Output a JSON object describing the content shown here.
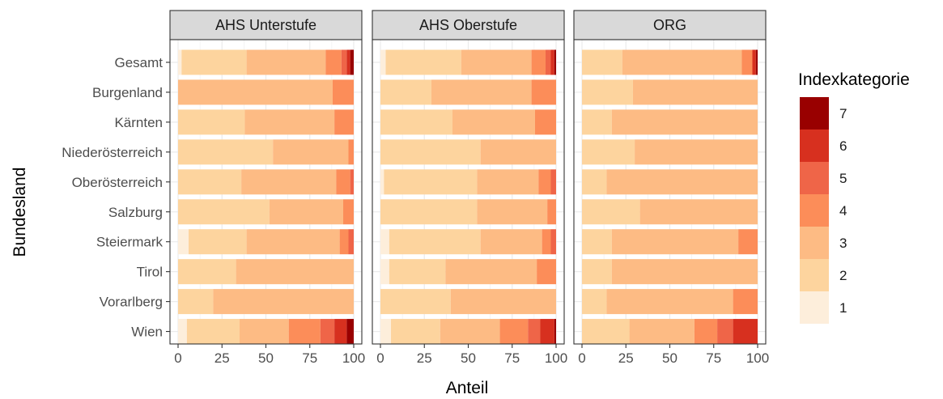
{
  "chart_data": {
    "type": "bar",
    "orientation": "horizontal",
    "stacked": true,
    "xlabel": "Anteil",
    "ylabel": "Bundesland",
    "xlim": [
      0,
      100
    ],
    "xticks": [
      "0",
      "25",
      "50",
      "75",
      "100"
    ],
    "xtick_values": [
      0,
      25,
      50,
      75,
      100
    ],
    "categories": [
      "Gesamt",
      "Burgenland",
      "Kärnten",
      "Niederösterreich",
      "Oberösterreich",
      "Salzburg",
      "Steiermark",
      "Tirol",
      "Vorarlberg",
      "Wien"
    ],
    "grid": true,
    "legend": {
      "title": "Indexkategorie",
      "position": "right",
      "entries": [
        "7",
        "6",
        "5",
        "4",
        "3",
        "2",
        "1"
      ]
    },
    "colors": {
      "1": "#fdeedb",
      "2": "#fdd49e",
      "3": "#fdbb84",
      "4": "#fc8d59",
      "5": "#ef6548",
      "6": "#d7301f",
      "7": "#990000"
    },
    "panels": [
      {
        "title": "AHS Unterstufe",
        "rows": [
          {
            "category": "Gesamt",
            "values": {
              "1": 2,
              "2": 37,
              "3": 45,
              "4": 9,
              "5": 3,
              "6": 2,
              "7": 2
            }
          },
          {
            "category": "Burgenland",
            "values": {
              "1": 0,
              "2": 0,
              "3": 88,
              "4": 12,
              "5": 0,
              "6": 0,
              "7": 0
            }
          },
          {
            "category": "Kärnten",
            "values": {
              "1": 0,
              "2": 38,
              "3": 51,
              "4": 11,
              "5": 0,
              "6": 0,
              "7": 0
            }
          },
          {
            "category": "Niederösterreich",
            "values": {
              "1": 0,
              "2": 54,
              "3": 43,
              "4": 3,
              "5": 0,
              "6": 0,
              "7": 0
            }
          },
          {
            "category": "Oberösterreich",
            "values": {
              "1": 0,
              "2": 36,
              "3": 54,
              "4": 8,
              "5": 2,
              "6": 0,
              "7": 0
            }
          },
          {
            "category": "Salzburg",
            "values": {
              "1": 0,
              "2": 52,
              "3": 42,
              "4": 6,
              "5": 0,
              "6": 0,
              "7": 0
            }
          },
          {
            "category": "Steiermark",
            "values": {
              "1": 6,
              "2": 33,
              "3": 53,
              "4": 5,
              "5": 3,
              "6": 0,
              "7": 0
            }
          },
          {
            "category": "Tirol",
            "values": {
              "1": 0,
              "2": 33,
              "3": 67,
              "4": 0,
              "5": 0,
              "6": 0,
              "7": 0
            }
          },
          {
            "category": "Vorarlberg",
            "values": {
              "1": 0,
              "2": 20,
              "3": 80,
              "4": 0,
              "5": 0,
              "6": 0,
              "7": 0
            }
          },
          {
            "category": "Wien",
            "values": {
              "1": 5,
              "2": 30,
              "3": 28,
              "4": 18,
              "5": 8,
              "6": 7,
              "7": 4
            }
          }
        ]
      },
      {
        "title": "AHS Oberstufe",
        "rows": [
          {
            "category": "Gesamt",
            "values": {
              "1": 3,
              "2": 43,
              "3": 40,
              "4": 8,
              "5": 3,
              "6": 2,
              "7": 1
            }
          },
          {
            "category": "Burgenland",
            "values": {
              "1": 0,
              "2": 29,
              "3": 57,
              "4": 14,
              "5": 0,
              "6": 0,
              "7": 0
            }
          },
          {
            "category": "Kärnten",
            "values": {
              "1": 0,
              "2": 41,
              "3": 47,
              "4": 12,
              "5": 0,
              "6": 0,
              "7": 0
            }
          },
          {
            "category": "Niederösterreich",
            "values": {
              "1": 0,
              "2": 57,
              "3": 43,
              "4": 0,
              "5": 0,
              "6": 0,
              "7": 0
            }
          },
          {
            "category": "Oberösterreich",
            "values": {
              "1": 2,
              "2": 53,
              "3": 35,
              "4": 7,
              "5": 3,
              "6": 0,
              "7": 0
            }
          },
          {
            "category": "Salzburg",
            "values": {
              "1": 0,
              "2": 55,
              "3": 40,
              "4": 5,
              "5": 0,
              "6": 0,
              "7": 0
            }
          },
          {
            "category": "Steiermark",
            "values": {
              "1": 5,
              "2": 52,
              "3": 35,
              "4": 5,
              "5": 3,
              "6": 0,
              "7": 0
            }
          },
          {
            "category": "Tirol",
            "values": {
              "1": 5,
              "2": 32,
              "3": 52,
              "4": 11,
              "5": 0,
              "6": 0,
              "7": 0
            }
          },
          {
            "category": "Vorarlberg",
            "values": {
              "1": 0,
              "2": 40,
              "3": 60,
              "4": 0,
              "5": 0,
              "6": 0,
              "7": 0
            }
          },
          {
            "category": "Wien",
            "values": {
              "1": 6,
              "2": 28,
              "3": 34,
              "4": 16,
              "5": 7,
              "6": 8,
              "7": 1
            }
          }
        ]
      },
      {
        "title": "ORG",
        "rows": [
          {
            "category": "Gesamt",
            "values": {
              "1": 0,
              "2": 23,
              "3": 68,
              "4": 6,
              "5": 0,
              "6": 2,
              "7": 1
            }
          },
          {
            "category": "Burgenland",
            "values": {
              "1": 0,
              "2": 29,
              "3": 71,
              "4": 0,
              "5": 0,
              "6": 0,
              "7": 0
            }
          },
          {
            "category": "Kärnten",
            "values": {
              "1": 0,
              "2": 17,
              "3": 83,
              "4": 0,
              "5": 0,
              "6": 0,
              "7": 0
            }
          },
          {
            "category": "Niederösterreich",
            "values": {
              "1": 0,
              "2": 30,
              "3": 70,
              "4": 0,
              "5": 0,
              "6": 0,
              "7": 0
            }
          },
          {
            "category": "Oberösterreich",
            "values": {
              "1": 0,
              "2": 14,
              "3": 86,
              "4": 0,
              "5": 0,
              "6": 0,
              "7": 0
            }
          },
          {
            "category": "Salzburg",
            "values": {
              "1": 0,
              "2": 33,
              "3": 67,
              "4": 0,
              "5": 0,
              "6": 0,
              "7": 0
            }
          },
          {
            "category": "Steiermark",
            "values": {
              "1": 0,
              "2": 17,
              "3": 72,
              "4": 11,
              "5": 0,
              "6": 0,
              "7": 0
            }
          },
          {
            "category": "Tirol",
            "values": {
              "1": 0,
              "2": 17,
              "3": 83,
              "4": 0,
              "5": 0,
              "6": 0,
              "7": 0
            }
          },
          {
            "category": "Vorarlberg",
            "values": {
              "1": 0,
              "2": 14,
              "3": 72,
              "4": 14,
              "5": 0,
              "6": 0,
              "7": 0
            }
          },
          {
            "category": "Wien",
            "values": {
              "1": 0,
              "2": 27,
              "3": 37,
              "4": 13,
              "5": 9,
              "6": 14,
              "7": 0
            }
          }
        ]
      }
    ]
  }
}
